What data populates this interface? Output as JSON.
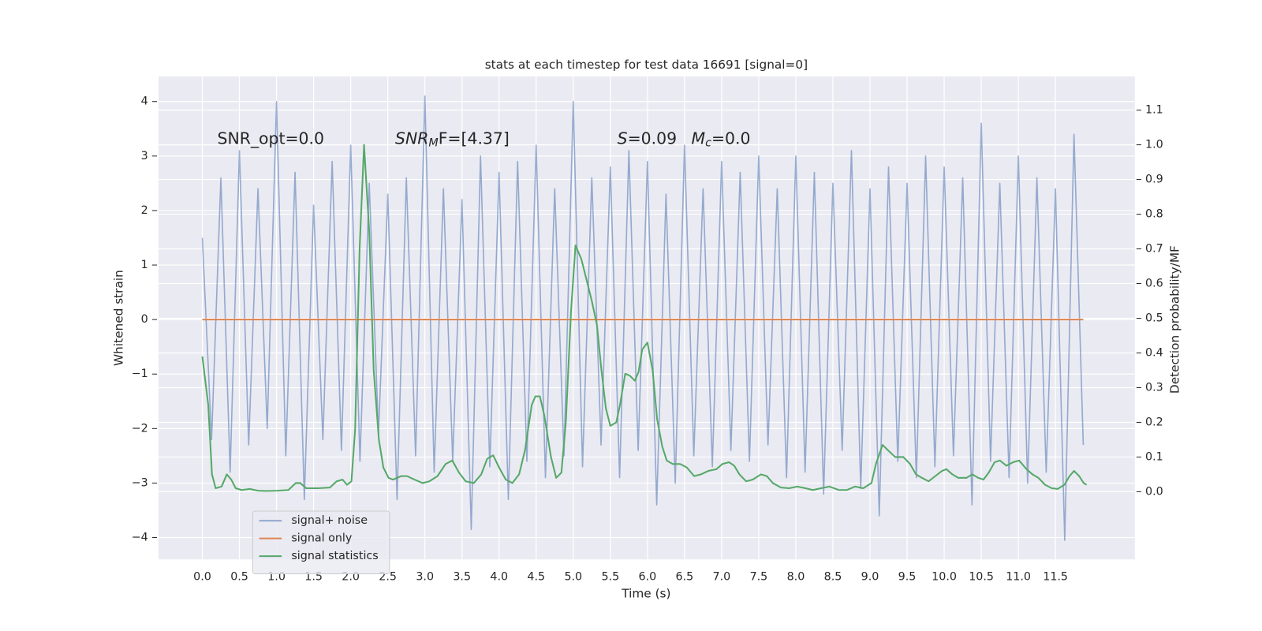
{
  "chart_data": {
    "type": "line",
    "title": "stats at each timestep for test data 16691 [signal=0]",
    "x_label": "Time (s)",
    "y_label": "Whitened strain",
    "y2_label": "Detection probability/MF",
    "annotations": [
      {
        "base": "SNR_opt=0.0"
      },
      {
        "base": "SNR",
        "sub": "M",
        "rest": "F=[4.37]"
      },
      {
        "base": "S",
        "rest": "=0.09"
      },
      {
        "base": "M",
        "sub": "c",
        "rest": "=0.0"
      }
    ],
    "xlim": [
      -0.59,
      12.57
    ],
    "ylim": [
      -4.4,
      4.46
    ],
    "y2lim": [
      -0.195,
      1.197
    ],
    "xticks": [
      {
        "value": 0,
        "label": "0.0"
      },
      0.5,
      {
        "value": 1,
        "label": "1.0"
      },
      1.5,
      {
        "value": 2,
        "label": "2.0"
      },
      2.5,
      {
        "value": 3,
        "label": "3.0"
      },
      3.5,
      {
        "value": 4,
        "label": "4.0"
      },
      4.5,
      {
        "value": 5,
        "label": "5.0"
      },
      5.5,
      {
        "value": 6,
        "label": "6.0"
      },
      6.5,
      {
        "value": 7,
        "label": "7.0"
      },
      7.5,
      {
        "value": 8,
        "label": "8.0"
      },
      8.5,
      {
        "value": 9,
        "label": "9.0"
      },
      9.5,
      {
        "value": 10,
        "label": "10.0"
      },
      10.5,
      {
        "value": 11,
        "label": "11.0"
      },
      11.5
    ],
    "yticks": [
      {
        "value": -4,
        "label": "−4"
      },
      {
        "value": -3,
        "label": "−3"
      },
      {
        "value": -2,
        "label": "−2"
      },
      {
        "value": -1,
        "label": "−1"
      },
      0,
      1,
      2,
      3,
      4
    ],
    "y2ticks": [
      {
        "value": 0,
        "label": "0.0"
      },
      0.1,
      0.2,
      0.3,
      0.4,
      0.5,
      0.6,
      0.7,
      0.8,
      0.9,
      {
        "value": 1,
        "label": "1.0"
      },
      1.1
    ],
    "grid": true,
    "legend": "lower left",
    "series": [
      {
        "name": "signal+ noise",
        "color": "#4c72b0",
        "x": [
          0,
          0.125,
          0.25,
          0.375,
          0.5,
          0.625,
          0.75,
          0.875,
          1,
          1.125,
          1.25,
          1.375,
          1.5,
          1.625,
          1.75,
          1.875,
          2,
          2.125,
          2.25,
          2.375,
          2.5,
          2.625,
          2.75,
          2.875,
          3,
          3.125,
          3.25,
          3.375,
          3.5,
          3.625,
          3.75,
          3.875,
          4,
          4.125,
          4.25,
          4.375,
          4.5,
          4.625,
          4.75,
          4.875,
          5,
          5.125,
          5.25,
          5.375,
          5.5,
          5.625,
          5.75,
          5.875,
          6,
          6.125,
          6.25,
          6.375,
          6.5,
          6.625,
          6.75,
          6.875,
          7,
          7.125,
          7.25,
          7.375,
          7.5,
          7.625,
          7.75,
          7.875,
          8,
          8.125,
          8.25,
          8.375,
          8.5,
          8.625,
          8.75,
          8.875,
          9,
          9.125,
          9.25,
          9.375,
          9.5,
          9.625,
          9.75,
          9.875,
          10,
          10.125,
          10.25,
          10.375,
          10.5,
          10.625,
          10.75,
          10.875,
          11,
          11.125,
          11.25,
          11.375,
          11.5,
          11.625,
          11.75,
          11.875
        ],
        "values": [
          1.5,
          -2.2,
          2.6,
          -2.8,
          3.1,
          -2.3,
          2.4,
          -2.0,
          4.0,
          -2.5,
          2.7,
          -3.3,
          2.1,
          -2.2,
          2.9,
          -2.4,
          3.2,
          -2.6,
          2.5,
          -2.1,
          2.3,
          -3.3,
          2.6,
          -2.5,
          4.1,
          -2.8,
          2.4,
          -2.6,
          2.2,
          -3.85,
          3.0,
          -2.7,
          2.7,
          -3.3,
          2.9,
          -2.6,
          3.2,
          -2.9,
          2.4,
          -2.5,
          4.0,
          -2.7,
          2.6,
          -2.3,
          2.8,
          -2.9,
          3.1,
          -2.4,
          2.9,
          -3.4,
          2.3,
          -3.0,
          3.2,
          -2.5,
          2.4,
          -2.7,
          2.9,
          -2.4,
          2.7,
          -2.6,
          3.0,
          -2.3,
          2.4,
          -2.9,
          3.0,
          -2.8,
          2.7,
          -3.2,
          2.5,
          -2.4,
          3.1,
          -3.1,
          2.4,
          -3.6,
          2.8,
          -2.6,
          2.5,
          -2.9,
          3.0,
          -2.7,
          2.8,
          -2.5,
          2.6,
          -3.4,
          3.6,
          -2.6,
          2.5,
          -2.9,
          3.0,
          -3.0,
          2.6,
          -2.8,
          2.4,
          -4.05,
          3.4,
          -2.3
        ]
      },
      {
        "name": "signal only",
        "color": "#dd8452",
        "x": [
          0,
          11.875
        ],
        "values": [
          0,
          0
        ]
      },
      {
        "name": "signal statistics",
        "color": "#55a868",
        "axis": "y2",
        "x": [
          0,
          0.08,
          0.13,
          0.18,
          0.26,
          0.33,
          0.39,
          0.45,
          0.53,
          0.64,
          0.75,
          0.86,
          1.02,
          1.16,
          1.26,
          1.32,
          1.4,
          1.56,
          1.72,
          1.81,
          1.89,
          1.95,
          2.01,
          2.06,
          2.12,
          2.18,
          2.25,
          2.31,
          2.38,
          2.44,
          2.51,
          2.57,
          2.68,
          2.76,
          2.86,
          2.97,
          3.06,
          3.17,
          3.28,
          3.37,
          3.46,
          3.55,
          3.66,
          3.76,
          3.84,
          3.92,
          4.0,
          4.09,
          4.18,
          4.27,
          4.35,
          4.44,
          4.49,
          4.55,
          4.61,
          4.7,
          4.77,
          4.84,
          4.9,
          4.97,
          5.03,
          5.11,
          5.18,
          5.25,
          5.32,
          5.38,
          5.44,
          5.5,
          5.58,
          5.63,
          5.7,
          5.76,
          5.83,
          5.88,
          5.93,
          6.0,
          6.07,
          6.13,
          6.2,
          6.26,
          6.34,
          6.44,
          6.53,
          6.63,
          6.72,
          6.82,
          6.93,
          7.01,
          7.1,
          7.17,
          7.24,
          7.33,
          7.42,
          7.53,
          7.61,
          7.69,
          7.8,
          7.91,
          8.02,
          8.13,
          8.23,
          8.34,
          8.45,
          8.58,
          8.69,
          8.8,
          8.91,
          9.02,
          9.08,
          9.17,
          9.24,
          9.34,
          9.45,
          9.54,
          9.62,
          9.7,
          9.79,
          9.88,
          9.97,
          10.03,
          10.11,
          10.19,
          10.3,
          10.38,
          10.46,
          10.53,
          10.6,
          10.68,
          10.75,
          10.84,
          10.93,
          11.01,
          11.11,
          11.19,
          11.27,
          11.36,
          11.45,
          11.53,
          11.62,
          11.69,
          11.75,
          11.82,
          11.88,
          11.92
        ],
        "values": [
          0.39,
          0.25,
          0.05,
          0.01,
          0.015,
          0.05,
          0.035,
          0.01,
          0.005,
          0.008,
          0.003,
          0.002,
          0.003,
          0.005,
          0.025,
          0.025,
          0.01,
          0.01,
          0.012,
          0.03,
          0.035,
          0.02,
          0.03,
          0.18,
          0.7,
          1.0,
          0.75,
          0.35,
          0.15,
          0.07,
          0.04,
          0.035,
          0.045,
          0.045,
          0.035,
          0.025,
          0.03,
          0.045,
          0.08,
          0.09,
          0.055,
          0.03,
          0.025,
          0.05,
          0.095,
          0.105,
          0.07,
          0.035,
          0.025,
          0.05,
          0.12,
          0.25,
          0.275,
          0.275,
          0.22,
          0.1,
          0.04,
          0.055,
          0.2,
          0.52,
          0.71,
          0.67,
          0.61,
          0.55,
          0.48,
          0.35,
          0.24,
          0.19,
          0.2,
          0.25,
          0.34,
          0.335,
          0.32,
          0.345,
          0.41,
          0.43,
          0.35,
          0.21,
          0.13,
          0.09,
          0.08,
          0.08,
          0.07,
          0.045,
          0.05,
          0.06,
          0.065,
          0.08,
          0.085,
          0.075,
          0.05,
          0.03,
          0.035,
          0.05,
          0.045,
          0.025,
          0.012,
          0.01,
          0.015,
          0.01,
          0.005,
          0.01,
          0.015,
          0.005,
          0.005,
          0.015,
          0.01,
          0.025,
          0.08,
          0.135,
          0.12,
          0.1,
          0.1,
          0.08,
          0.05,
          0.04,
          0.03,
          0.045,
          0.06,
          0.065,
          0.05,
          0.04,
          0.04,
          0.05,
          0.04,
          0.035,
          0.055,
          0.085,
          0.09,
          0.075,
          0.085,
          0.09,
          0.065,
          0.05,
          0.04,
          0.02,
          0.01,
          0.008,
          0.02,
          0.045,
          0.06,
          0.045,
          0.025,
          0.02
        ]
      }
    ]
  }
}
